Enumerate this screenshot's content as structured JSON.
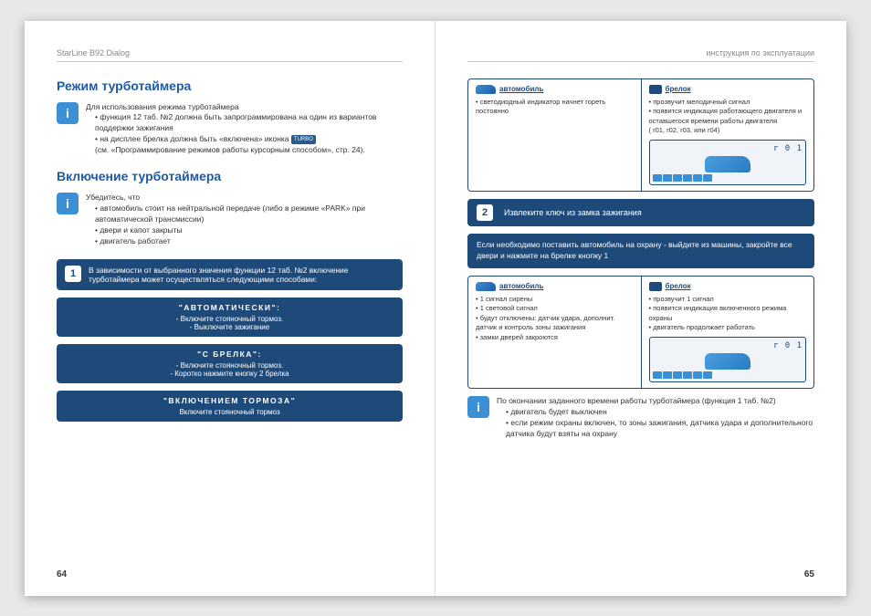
{
  "leftHeader": "StarLine B92 Dialog",
  "rightHeader": "инструкция по эксплуатации",
  "pageLeft": "64",
  "pageRight": "65",
  "section1": {
    "title": "Режим турботаймера",
    "intro": "Для использования режима турботаймера",
    "bullets": [
      "функция 12 таб. №2 должна быть запрограммирована на один из вариантов поддержки зажигания",
      "на дисплее брелка должна быть «включена» иконка"
    ],
    "note": "(см. «Программирование режимов работы курсорным способом», стр. 24).",
    "turbo": "TURBO"
  },
  "section2": {
    "title": "Включение турботаймера",
    "intro": "Убедитесь, что",
    "bullets": [
      "автомобиль стоит на нейтральной передаче (либо в режиме «PARK» при автоматической трансмиссии)",
      "двери и капот закрыты",
      "двигатель работает"
    ]
  },
  "step1": {
    "num": "1",
    "text": "В зависимости от выбранного значения функции 12 таб. №2  включение турботаймера может осуществляться  следующими способами:"
  },
  "actions": [
    {
      "title": "\"АВТОМАТИЧЕСКИ\":",
      "lines": [
        "- Включите  стояночный  тормоз.",
        "- Выключите зажигание"
      ]
    },
    {
      "title": "\"С  БРЕЛКА\":",
      "lines": [
        "- Включите стояночный  тормоз.",
        "- Коротко нажмите кнопку 2 брелка"
      ]
    },
    {
      "title": "\"ВКЛЮЧЕНИЕМ  ТОРМОЗА\"",
      "lines": [
        "Включите  стояночный  тормоз"
      ]
    }
  ],
  "rightTop": {
    "carLabel": "автомобиль",
    "fobLabel": "брелок",
    "carContent": "светодиодный индикатор начнет гореть постоянно",
    "fobBullets": [
      "прозвучит мелодичный сигнал",
      "появится индикация работающего двигателя и оставшегося времени работы двигателя",
      "( r01, r02, r03, или r04)"
    ],
    "lcd": "r 0 1"
  },
  "step2": {
    "num": "2",
    "text": "Извлеките ключ из замка зажигания"
  },
  "banner": "Если необходимо поставить автомобиль на охрану - выйдите из машины, закройте все двери и нажмите на брелке кнопку 1",
  "rightBottom": {
    "carLabel": "автомобиль",
    "fobLabel": "брелок",
    "carBullets": [
      "1 сигнал сирены",
      "1 световой сигнал",
      "будут отключены: датчик удара, дополнит. датчик и контроль зоны зажигания",
      "замки дверей закроются"
    ],
    "fobBullets": [
      "прозвучит 1 сигнал",
      "появится индикация включенного режима охраны",
      "двигатель продолжает работать"
    ],
    "lcd": "r 0 1"
  },
  "finalInfo": {
    "intro": "По окончании заданного времени работы турботаймера (функция 1 таб. №2)",
    "bullets": [
      "двигатель будет выключен",
      "если режим охраны включен, то зоны зажигания, датчика удара и дополнительного датчика будут взяты на охрану"
    ]
  }
}
